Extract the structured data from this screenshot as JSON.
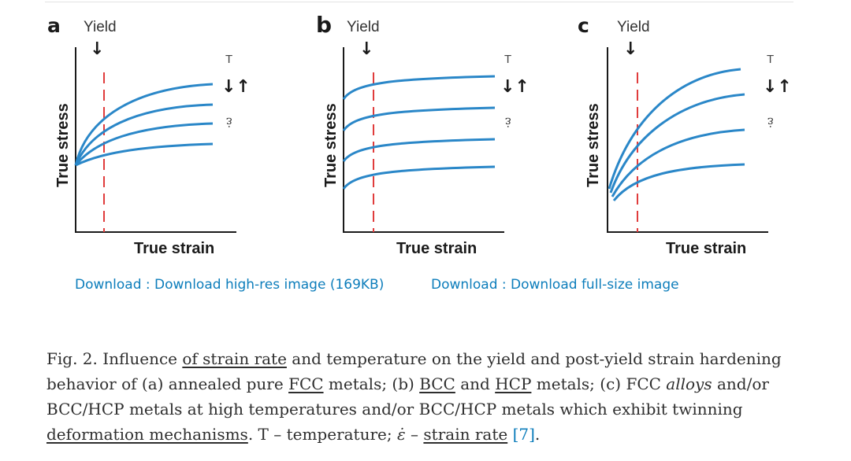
{
  "figure": {
    "panels": [
      {
        "letter": "a",
        "yield_label": "Yield",
        "t_label": "T",
        "rate_symbol": "ε̇",
        "ylabel": "True stress",
        "xlabel": "True strain"
      },
      {
        "letter": "b",
        "yield_label": "Yield",
        "t_label": "T",
        "rate_symbol": "ε̇",
        "ylabel": "True stress",
        "xlabel": "True strain"
      },
      {
        "letter": "c",
        "yield_label": "Yield",
        "t_label": "T",
        "rate_symbol": "ε̇",
        "ylabel": "True stress",
        "xlabel": "True strain"
      }
    ],
    "colors": {
      "curve": "#2a87c8",
      "yield_line": "#e03c3c",
      "axis": "#1a1a1a"
    }
  },
  "links": {
    "download_highres": "Download : Download high-res image (169KB)",
    "download_fullsize": "Download : Download full-size image"
  },
  "caption": {
    "p1": "Fig. 2. Influence ",
    "link_strain_rate": "of strain rate",
    "p2": " and temperature on the yield and post-yield strain hardening behavior of (a) annealed pure ",
    "link_fcc": "FCC",
    "p3": " metals; (b) ",
    "link_bcc": "BCC",
    "p4": " and ",
    "link_hcp": "HCP",
    "p5": " metals; (c) FCC ",
    "italic_alloys": "alloys",
    "p6": " and/or BCC/HCP metals at high temperatures and/or BCC/HCP metals which exhibit twinning ",
    "link_deformation": "deformation mechanisms",
    "p7": ". T – temperature; ",
    "symbol": "ε̇",
    "p8": " – ",
    "link_strain_rate2": "strain rate",
    "p9": " ",
    "ref": "[7]",
    "p10": "."
  }
}
